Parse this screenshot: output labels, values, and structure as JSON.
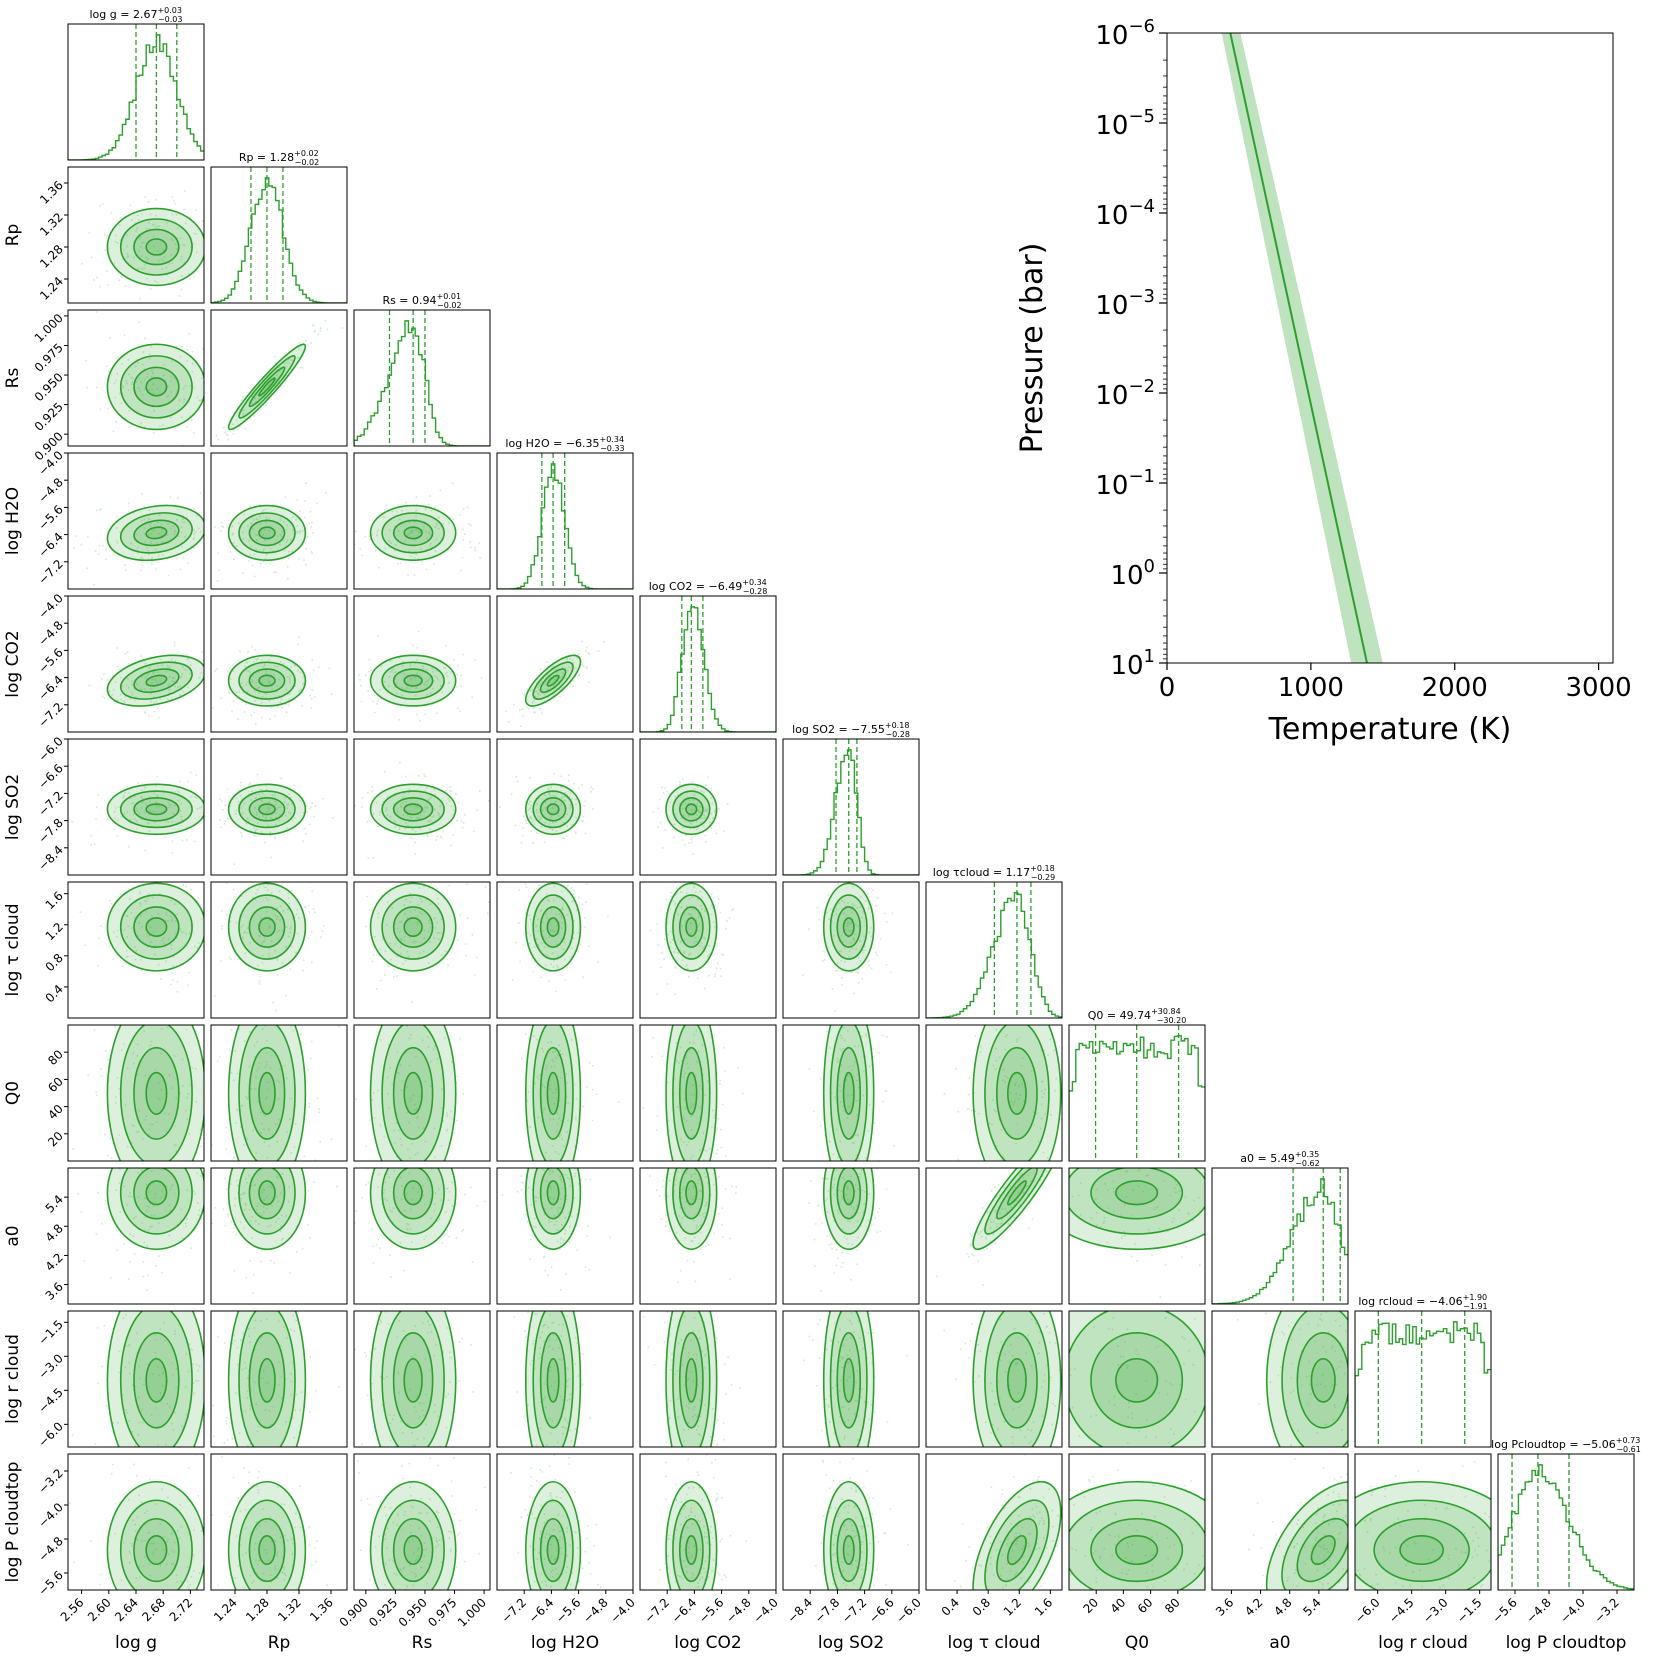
{
  "chart_data": {
    "type": "corner",
    "color": "#2ca02c",
    "parameters": [
      {
        "key": "logg",
        "label": "log g",
        "range": [
          2.54,
          2.74
        ],
        "ticks": [
          2.56,
          2.6,
          2.64,
          2.68,
          2.72
        ],
        "tick_labels": [
          "2.56",
          "2.60",
          "2.64",
          "2.68",
          "2.72"
        ],
        "median": 2.67,
        "plus": 0.03,
        "minus": 0.03,
        "title": "log g = 2.67",
        "title_sup": "+0.03",
        "title_sub": "−0.03"
      },
      {
        "key": "Rp",
        "label": "Rp",
        "range": [
          1.21,
          1.38
        ],
        "ticks": [
          1.24,
          1.28,
          1.32,
          1.36
        ],
        "tick_labels": [
          "1.24",
          "1.28",
          "1.32",
          "1.36"
        ],
        "median": 1.28,
        "plus": 0.02,
        "minus": 0.02,
        "title": "Rp = 1.28",
        "title_sup": "+0.02",
        "title_sub": "−0.02"
      },
      {
        "key": "Rs",
        "label": "Rs",
        "range": [
          0.89,
          1.005
        ],
        "ticks": [
          0.9,
          0.925,
          0.95,
          0.975,
          1.0
        ],
        "tick_labels": [
          "0.900",
          "0.925",
          "0.950",
          "0.975",
          "1.000"
        ],
        "median": 0.94,
        "plus": 0.01,
        "minus": 0.02,
        "title": "Rs = 0.94",
        "title_sup": "+0.01",
        "title_sub": "−0.02"
      },
      {
        "key": "H2O",
        "label": "log H2O",
        "range": [
          -8.0,
          -4.0
        ],
        "ticks": [
          -7.2,
          -6.4,
          -5.6,
          -4.8,
          -4.0
        ],
        "tick_labels": [
          "−7.2",
          "−6.4",
          "−5.6",
          "−4.8",
          "−4.0"
        ],
        "median": -6.35,
        "plus": 0.34,
        "minus": 0.33,
        "title": "log H2O = −6.35",
        "title_sup": "+0.34",
        "title_sub": "−0.33"
      },
      {
        "key": "CO2",
        "label": "log CO2",
        "range": [
          -8.0,
          -4.0
        ],
        "ticks": [
          -7.2,
          -6.4,
          -5.6,
          -4.8,
          -4.0
        ],
        "tick_labels": [
          "−7.2",
          "−6.4",
          "−5.6",
          "−4.8",
          "−4.0"
        ],
        "median": -6.49,
        "plus": 0.34,
        "minus": 0.28,
        "title": "log CO2 = −6.49",
        "title_sup": "+0.34",
        "title_sub": "−0.28"
      },
      {
        "key": "SO2",
        "label": "log SO2",
        "range": [
          -9.0,
          -6.0
        ],
        "ticks": [
          -8.4,
          -7.8,
          -7.2,
          -6.6,
          -6.0
        ],
        "tick_labels": [
          "−8.4",
          "−7.8",
          "−7.2",
          "−6.6",
          "−6.0"
        ],
        "median": -7.55,
        "plus": 0.18,
        "minus": 0.28,
        "title": "log SO2 = −7.55",
        "title_sup": "+0.18",
        "title_sub": "−0.28"
      },
      {
        "key": "tau",
        "label": "log τ cloud",
        "range": [
          0.0,
          1.75
        ],
        "ticks": [
          0.4,
          0.8,
          1.2,
          1.6
        ],
        "tick_labels": [
          "0.4",
          "0.8",
          "1.2",
          "1.6"
        ],
        "median": 1.17,
        "plus": 0.18,
        "minus": 0.29,
        "title": "log τcloud = 1.17",
        "title_sup": "+0.18",
        "title_sub": "−0.29"
      },
      {
        "key": "Q0",
        "label": "Q0",
        "range": [
          0,
          100
        ],
        "ticks": [
          20,
          40,
          60,
          80
        ],
        "tick_labels": [
          "20",
          "40",
          "60",
          "80"
        ],
        "median": 49.74,
        "plus": 30.84,
        "minus": 30.2,
        "title": "Q0 = 49.74",
        "title_sup": "+30.84",
        "title_sub": "−30.20"
      },
      {
        "key": "a0",
        "label": "a0",
        "range": [
          3.2,
          6.0
        ],
        "ticks": [
          3.6,
          4.2,
          4.8,
          5.4
        ],
        "tick_labels": [
          "3.6",
          "4.2",
          "4.8",
          "5.4"
        ],
        "median": 5.49,
        "plus": 0.35,
        "minus": 0.62,
        "title": "a0 = 5.49",
        "title_sup": "+0.35",
        "title_sub": "−0.62"
      },
      {
        "key": "rcloud",
        "label": "log r cloud",
        "range": [
          -7.0,
          -1.0
        ],
        "ticks": [
          -6.0,
          -4.5,
          -3.0,
          -1.5
        ],
        "tick_labels": [
          "−6.0",
          "−4.5",
          "−3.0",
          "−1.5"
        ],
        "median": -4.06,
        "plus": 1.9,
        "minus": 1.91,
        "title": "log rcloud = −4.06",
        "title_sup": "+1.90",
        "title_sub": "−1.91"
      },
      {
        "key": "Pct",
        "label": "log P cloudtop",
        "range": [
          -6.0,
          -2.8
        ],
        "ticks": [
          -5.6,
          -4.8,
          -4.0,
          -3.2
        ],
        "tick_labels": [
          "−5.6",
          "−4.8",
          "−4.0",
          "−3.2"
        ],
        "median": -5.06,
        "plus": 0.73,
        "minus": 0.61,
        "title": "log Pcloudtop = −5.06",
        "title_sup": "+0.73",
        "title_sub": "−0.61"
      }
    ],
    "correlations": [
      {
        "pair": [
          "Rp",
          "Rs"
        ],
        "rho": 0.95
      },
      {
        "pair": [
          "H2O",
          "CO2"
        ],
        "rho": 0.75
      },
      {
        "pair": [
          "tau",
          "a0"
        ],
        "rho": 0.9
      },
      {
        "pair": [
          "tau",
          "Pct"
        ],
        "rho": 0.55
      },
      {
        "pair": [
          "a0",
          "Pct"
        ],
        "rho": 0.5
      },
      {
        "pair": [
          "logg",
          "CO2"
        ],
        "rho": 0.35
      },
      {
        "pair": [
          "logg",
          "H2O"
        ],
        "rho": 0.2
      }
    ],
    "pt_profile": {
      "xlabel": "Temperature (K)",
      "ylabel": "Pressure (bar)",
      "xlim": [
        0,
        3100
      ],
      "xticks": [
        0,
        1000,
        2000,
        3000
      ],
      "xtick_labels": [
        "0",
        "1000",
        "2000",
        "3000"
      ],
      "ylim_log10": [
        1,
        -6
      ],
      "yticks_log10": [
        -6,
        -5,
        -4,
        -3,
        -2,
        -1,
        0,
        1
      ],
      "ytick_base": "10",
      "ytick_exponents": [
        "−6",
        "−5",
        "−4",
        "−3",
        "−2",
        "−1",
        "0",
        "1"
      ],
      "median_line": [
        {
          "T": 440,
          "logP": -6
        },
        {
          "T": 1390,
          "logP": 1
        }
      ],
      "band_low": [
        {
          "T": 380,
          "logP": -6
        },
        {
          "T": 1280,
          "logP": 1
        }
      ],
      "band_high": [
        {
          "T": 510,
          "logP": -6
        },
        {
          "T": 1500,
          "logP": 1
        }
      ]
    }
  }
}
